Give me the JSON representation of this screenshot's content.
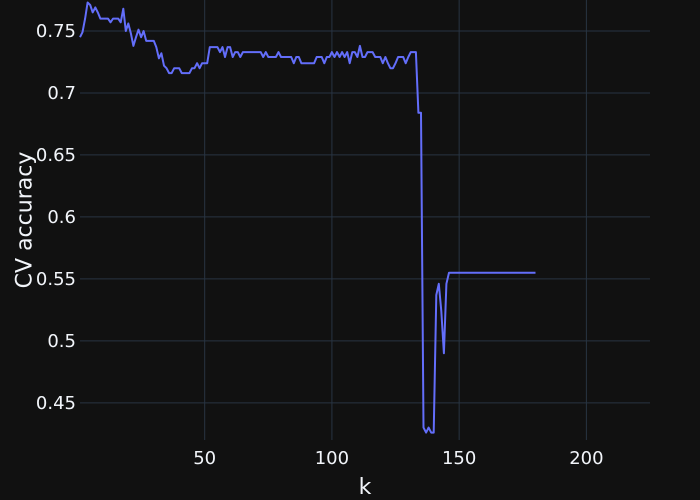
{
  "chart_data": {
    "type": "line",
    "title": "",
    "xlabel": "k",
    "ylabel": "CV accuracy",
    "xlim": [
      1,
      225
    ],
    "ylim": [
      0.42,
      0.775
    ],
    "grid": true,
    "x_ticks": [
      50,
      100,
      150,
      200
    ],
    "x_tick_labels": [
      "50",
      "100",
      "150",
      "200"
    ],
    "y_ticks": [
      0.45,
      0.5,
      0.55,
      0.6,
      0.65,
      0.7,
      0.75
    ],
    "y_tick_labels": [
      "0.45",
      "0.5",
      "0.55",
      "0.6",
      "0.65",
      "0.7",
      "0.75"
    ],
    "colors": {
      "background": "#111111",
      "grid": "#283442",
      "text": "#f2f5fa",
      "line": "#636efa"
    },
    "series": [
      {
        "color": "#636efa",
        "x": [
          1,
          2,
          3,
          4,
          5,
          6,
          7,
          8,
          9,
          10,
          11,
          12,
          13,
          14,
          15,
          16,
          17,
          18,
          19,
          20,
          21,
          22,
          23,
          24,
          25,
          26,
          27,
          28,
          29,
          30,
          31,
          32,
          33,
          34,
          35,
          36,
          37,
          38,
          39,
          40,
          41,
          42,
          43,
          44,
          45,
          46,
          47,
          48,
          49,
          50,
          51,
          52,
          53,
          54,
          55,
          56,
          57,
          58,
          59,
          60,
          61,
          62,
          63,
          64,
          65,
          66,
          67,
          68,
          69,
          70,
          71,
          72,
          73,
          74,
          75,
          76,
          77,
          78,
          79,
          80,
          81,
          82,
          83,
          84,
          85,
          86,
          87,
          88,
          89,
          90,
          91,
          92,
          93,
          94,
          95,
          96,
          97,
          98,
          99,
          100,
          101,
          102,
          103,
          104,
          105,
          106,
          107,
          108,
          109,
          110,
          111,
          112,
          113,
          114,
          115,
          116,
          117,
          118,
          119,
          120,
          121,
          122,
          123,
          124,
          125,
          126,
          127,
          128,
          129,
          130,
          131,
          132,
          133,
          134,
          135,
          136,
          137,
          138,
          139,
          140,
          141,
          142,
          143,
          144,
          145,
          146,
          147,
          148,
          149,
          150,
          151,
          152,
          153,
          154,
          155,
          156,
          157,
          158,
          159,
          160,
          161,
          162,
          163,
          164,
          165,
          166,
          167,
          168,
          169,
          170,
          171,
          172,
          173,
          174,
          175,
          176,
          177,
          178,
          179,
          180
        ],
        "y": [
          0.745,
          0.749,
          0.76,
          0.773,
          0.771,
          0.765,
          0.769,
          0.765,
          0.76,
          0.76,
          0.76,
          0.76,
          0.757,
          0.76,
          0.76,
          0.76,
          0.757,
          0.768,
          0.75,
          0.756,
          0.748,
          0.738,
          0.745,
          0.751,
          0.745,
          0.75,
          0.742,
          0.742,
          0.742,
          0.742,
          0.737,
          0.728,
          0.732,
          0.722,
          0.72,
          0.716,
          0.716,
          0.72,
          0.72,
          0.72,
          0.716,
          0.716,
          0.716,
          0.716,
          0.72,
          0.72,
          0.724,
          0.72,
          0.724,
          0.724,
          0.724,
          0.737,
          0.737,
          0.737,
          0.737,
          0.733,
          0.737,
          0.729,
          0.737,
          0.737,
          0.729,
          0.733,
          0.733,
          0.729,
          0.733,
          0.733,
          0.733,
          0.733,
          0.733,
          0.733,
          0.733,
          0.733,
          0.729,
          0.733,
          0.729,
          0.729,
          0.729,
          0.729,
          0.733,
          0.729,
          0.729,
          0.729,
          0.729,
          0.729,
          0.724,
          0.729,
          0.729,
          0.724,
          0.724,
          0.724,
          0.724,
          0.724,
          0.724,
          0.729,
          0.729,
          0.729,
          0.724,
          0.729,
          0.729,
          0.733,
          0.729,
          0.733,
          0.729,
          0.733,
          0.729,
          0.733,
          0.724,
          0.733,
          0.733,
          0.729,
          0.738,
          0.729,
          0.729,
          0.733,
          0.733,
          0.733,
          0.729,
          0.729,
          0.729,
          0.724,
          0.729,
          0.724,
          0.72,
          0.72,
          0.724,
          0.729,
          0.729,
          0.729,
          0.724,
          0.729,
          0.733,
          0.733,
          0.733,
          0.684,
          0.684,
          0.43,
          0.426,
          0.43,
          0.426,
          0.426,
          0.537,
          0.546,
          0.524,
          0.49,
          0.546,
          0.555,
          0.555,
          0.555,
          0.555,
          0.555,
          0.555,
          0.555,
          0.555,
          0.555,
          0.555,
          0.555,
          0.555,
          0.555,
          0.555,
          0.555,
          0.555,
          0.555,
          0.555,
          0.555,
          0.555,
          0.555,
          0.555,
          0.555,
          0.555,
          0.555,
          0.555,
          0.555,
          0.555,
          0.555,
          0.555,
          0.555,
          0.555,
          0.555,
          0.555,
          0.555
        ]
      }
    ]
  }
}
